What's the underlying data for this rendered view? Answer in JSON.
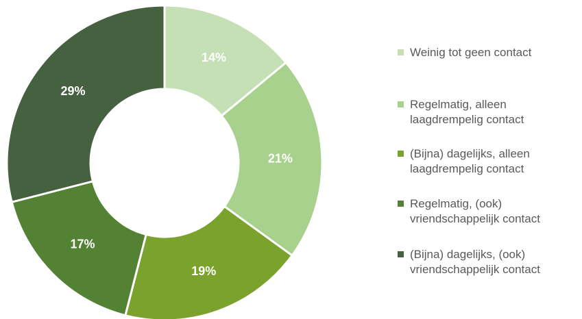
{
  "chart_data": {
    "type": "donut",
    "categories": [
      "Weinig tot geen contact",
      "Regelmatig, alleen laagdrempelig contact",
      "(Bijna) dagelijks, alleen laagdrempelig contact",
      "Regelmatig, (ook) vriendschappelijk contact",
      "(Bijna) dagelijks, (ook) vriendschappelijk contact"
    ],
    "values": [
      14,
      21,
      19,
      17,
      29
    ],
    "value_labels": [
      "14%",
      "21%",
      "19%",
      "17%",
      "29%"
    ],
    "colors": [
      "#c5e0b4",
      "#a9d18e",
      "#7aa22c",
      "#548235",
      "#46613f"
    ],
    "legend": "right"
  }
}
